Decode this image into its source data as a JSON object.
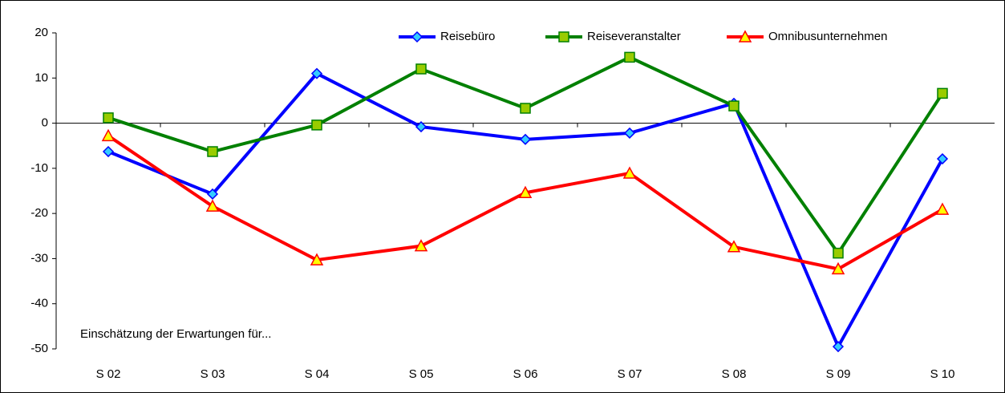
{
  "chart_data": {
    "type": "line",
    "categories": [
      "S 02",
      "S 03",
      "S 04",
      "S 05",
      "S 06",
      "S 07",
      "S 08",
      "S 09",
      "S 10"
    ],
    "series": [
      {
        "name": "Reisebüro",
        "color": "#0000ff",
        "marker": "diamond",
        "marker_color": "#33ccff",
        "values": [
          -6.3,
          -15.7,
          11,
          -0.8,
          -3.6,
          -2.2,
          4.4,
          -49.5,
          -7.9
        ]
      },
      {
        "name": "Reiseveranstalter",
        "color": "#008000",
        "marker": "square",
        "marker_color": "#99cc00",
        "values": [
          1.2,
          -6.3,
          -0.4,
          12,
          3.3,
          14.6,
          3.8,
          -28.8,
          6.6
        ]
      },
      {
        "name": "Omnibusunternehmen",
        "color": "#ff0000",
        "marker": "triangle",
        "marker_color": "#ffff00",
        "values": [
          -2.8,
          -18.4,
          -30.3,
          -27.2,
          -15.4,
          -11.1,
          -27.4,
          -32.3,
          -19.1
        ]
      }
    ],
    "annotation": "Einschätzung der Erwartungen für...",
    "ylim": [
      -50,
      20
    ],
    "yticks": [
      -50,
      -40,
      -30,
      -20,
      -10,
      0,
      10,
      20
    ],
    "grid": false,
    "legend": "top"
  }
}
